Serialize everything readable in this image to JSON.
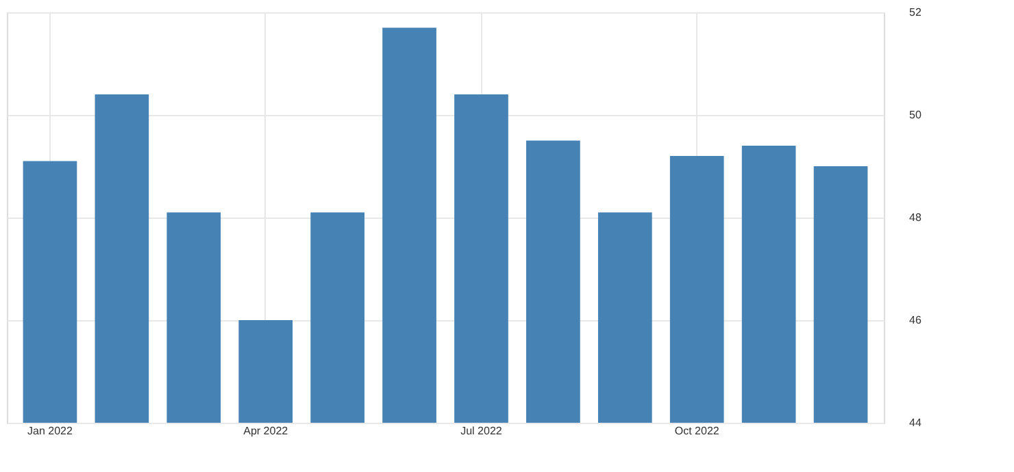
{
  "chart_data": {
    "type": "bar",
    "categories": [
      "Jan 2022",
      null,
      null,
      "Apr 2022",
      null,
      null,
      "Jul 2022",
      null,
      null,
      "Oct 2022",
      null,
      null
    ],
    "values": [
      49.1,
      50.4,
      48.1,
      46.0,
      48.1,
      51.7,
      50.4,
      49.5,
      48.1,
      49.2,
      49.4,
      49.0
    ],
    "color": "#4682b4",
    "ylim": [
      44,
      52
    ],
    "yticks": [
      44,
      46,
      48,
      50,
      52
    ],
    "grid": true
  }
}
